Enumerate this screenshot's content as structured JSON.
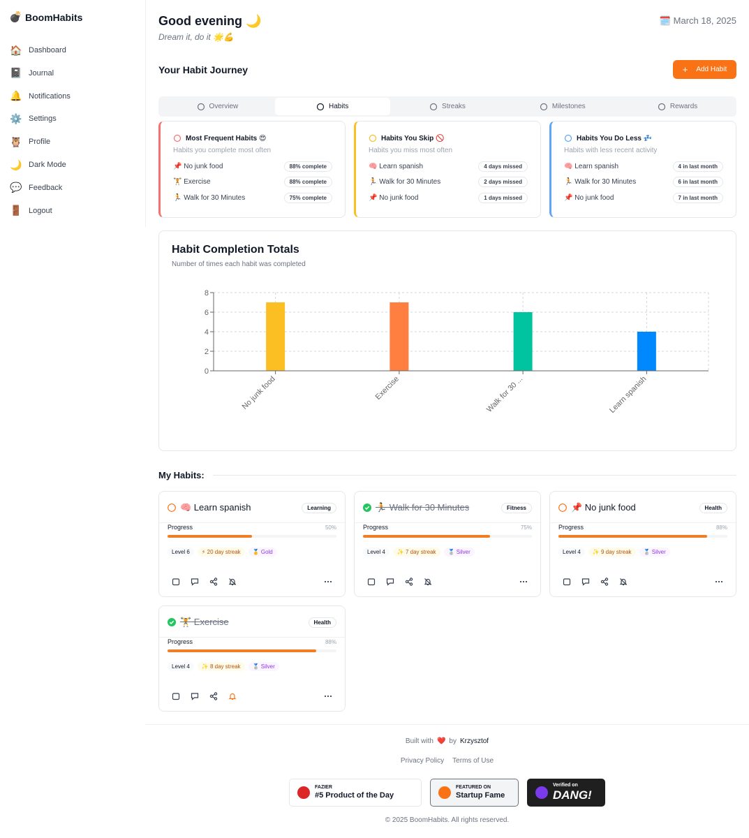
{
  "app": {
    "logo": "💣",
    "name": "BoomHabits"
  },
  "sidebar": [
    {
      "icon": "🏠",
      "label": "Dashboard"
    },
    {
      "icon": "📓",
      "label": "Journal"
    },
    {
      "icon": "🔔",
      "label": "Notifications"
    },
    {
      "icon": "⚙️",
      "label": "Settings"
    },
    {
      "icon": "🦉",
      "label": "Profile"
    },
    {
      "icon": "🌙",
      "label": "Dark Mode"
    },
    {
      "icon": "💬",
      "label": "Feedback"
    },
    {
      "icon": "🚪",
      "label": "Logout"
    }
  ],
  "header": {
    "greeting": "Good evening 🌙",
    "tagline": "Dream it, do it 🌟💪",
    "date": "🗓️ March 18, 2025"
  },
  "journey": {
    "title": "Your Habit Journey",
    "add_icon": "+",
    "add_button": "Add Habit"
  },
  "tabs": {
    "active": 1,
    "items": [
      "Overview",
      "Habits",
      "Streaks",
      "Milestones",
      "Rewards"
    ]
  },
  "insights": [
    {
      "title": "Most Frequent Habits 😍",
      "subtitle": "Habits you complete most often",
      "color": "#f87171",
      "items": [
        {
          "name": "📌 No junk food",
          "badge": "88% complete"
        },
        {
          "name": "🏋️ Exercise",
          "badge": "88% complete"
        },
        {
          "name": "🏃 Walk for 30 Minutes",
          "badge": "75% complete"
        }
      ]
    },
    {
      "title": "Habits You Skip 🚫",
      "subtitle": "Habits you miss most often",
      "color": "#fbbf24",
      "items": [
        {
          "name": "🧠 Learn spanish",
          "badge": "4 days missed"
        },
        {
          "name": "🏃 Walk for 30 Minutes",
          "badge": "2 days missed"
        },
        {
          "name": "📌 No junk food",
          "badge": "1 days missed"
        }
      ]
    },
    {
      "title": "Habits You Do Less 💤",
      "subtitle": "Habits with less recent activity",
      "color": "#60a5fa",
      "items": [
        {
          "name": "🧠 Learn spanish",
          "badge": "4 in last month"
        },
        {
          "name": "🏃 Walk for 30 Minutes",
          "badge": "6 in last month"
        },
        {
          "name": "📌 No junk food",
          "badge": "7 in last month"
        }
      ]
    }
  ],
  "chart_data": {
    "type": "bar",
    "title": "Habit Completion Totals",
    "subtitle": "Number of times each habit was completed",
    "categories": [
      "No junk food",
      "Exercise",
      "Walk for 30 ...",
      "Learn spanish"
    ],
    "values": [
      7,
      7,
      6,
      4
    ],
    "colors": [
      "#fbbf24",
      "#ff7f41",
      "#00c49f",
      "#0088fe"
    ],
    "ylim": [
      0,
      8
    ],
    "yticks": [
      0,
      2,
      4,
      6,
      8
    ],
    "grid": true
  },
  "my_habits": {
    "title": "My Habits:",
    "progress_label": "Progress",
    "habits": [
      {
        "name": "🧠 Learn spanish",
        "done": false,
        "category": "Learning",
        "progress": 50,
        "progress_text": "50%",
        "level": "Level 6",
        "streak": "⚡ 20 day streak",
        "medal": "🥇 Gold",
        "reminder_on": false
      },
      {
        "name": "🏃 Walk for 30 Minutes",
        "done": true,
        "category": "Fitness",
        "progress": 75,
        "progress_text": "75%",
        "level": "Level 4",
        "streak": "✨ 7 day streak",
        "medal": "🥈 Silver",
        "reminder_on": false
      },
      {
        "name": "📌 No junk food",
        "done": false,
        "category": "Health",
        "progress": 88,
        "progress_text": "88%",
        "level": "Level 4",
        "streak": "✨ 9 day streak",
        "medal": "🥈 Silver",
        "reminder_on": false
      },
      {
        "name": "🏋️ Exercise",
        "done": true,
        "category": "Health",
        "progress": 88,
        "progress_text": "88%",
        "level": "Level 4",
        "streak": "✨ 8 day streak",
        "medal": "🥈 Silver",
        "reminder_on": true
      }
    ]
  },
  "footer": {
    "built_with": "Built with",
    "heart": "❤️",
    "by": "by",
    "author": "Krzysztof",
    "links": [
      "Privacy Policy",
      "Terms of Use"
    ],
    "badges": [
      {
        "small": "FAZIER",
        "big": "#5 Product of the Day"
      },
      {
        "small": "FEATURED ON",
        "big": "Startup Fame"
      },
      {
        "small": "Verified on",
        "big": "DANG!"
      }
    ],
    "copyright": "© 2025 BoomHabits. All rights reserved."
  }
}
